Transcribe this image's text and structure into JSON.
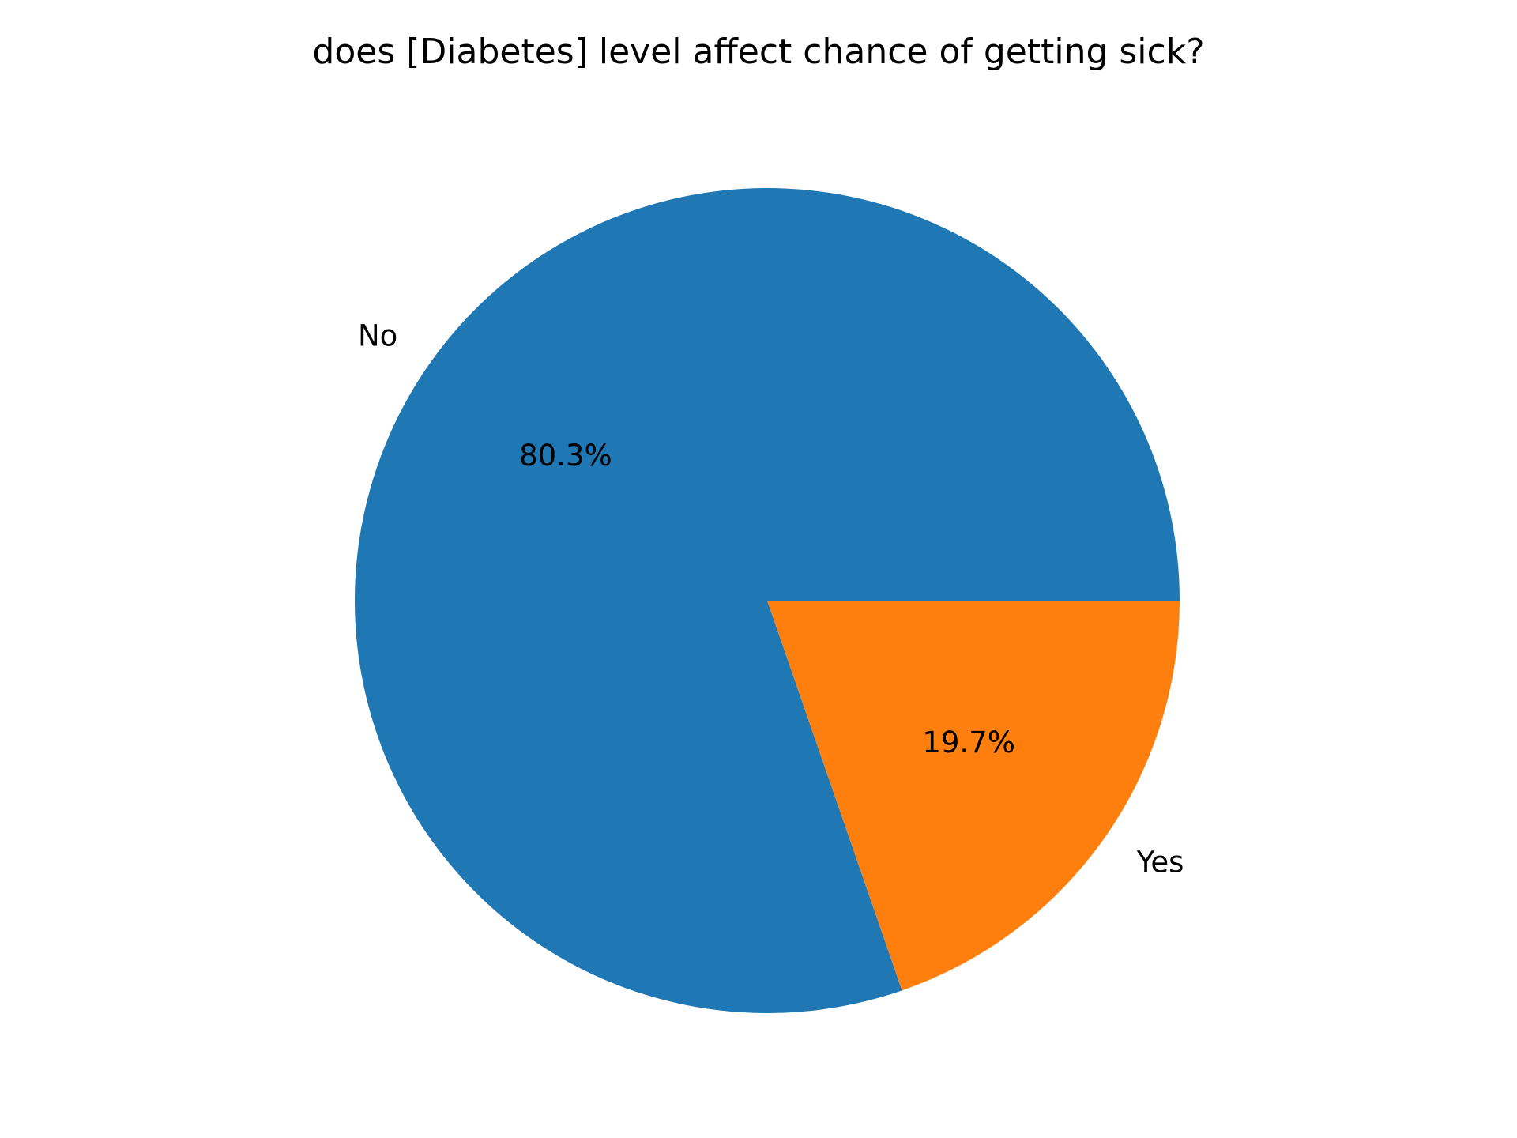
{
  "chart_data": {
    "type": "pie",
    "title": "does [Diabetes] level affect chance of getting sick?",
    "slices": [
      {
        "label": "No",
        "value": 80.3,
        "pct_label": "80.3%",
        "color": "#1f77b4"
      },
      {
        "label": "Yes",
        "value": 19.7,
        "pct_label": "19.7%",
        "color": "#ff7f0e"
      }
    ],
    "start_angle_deg": 0,
    "direction": "counterclockwise",
    "legend": "none"
  }
}
